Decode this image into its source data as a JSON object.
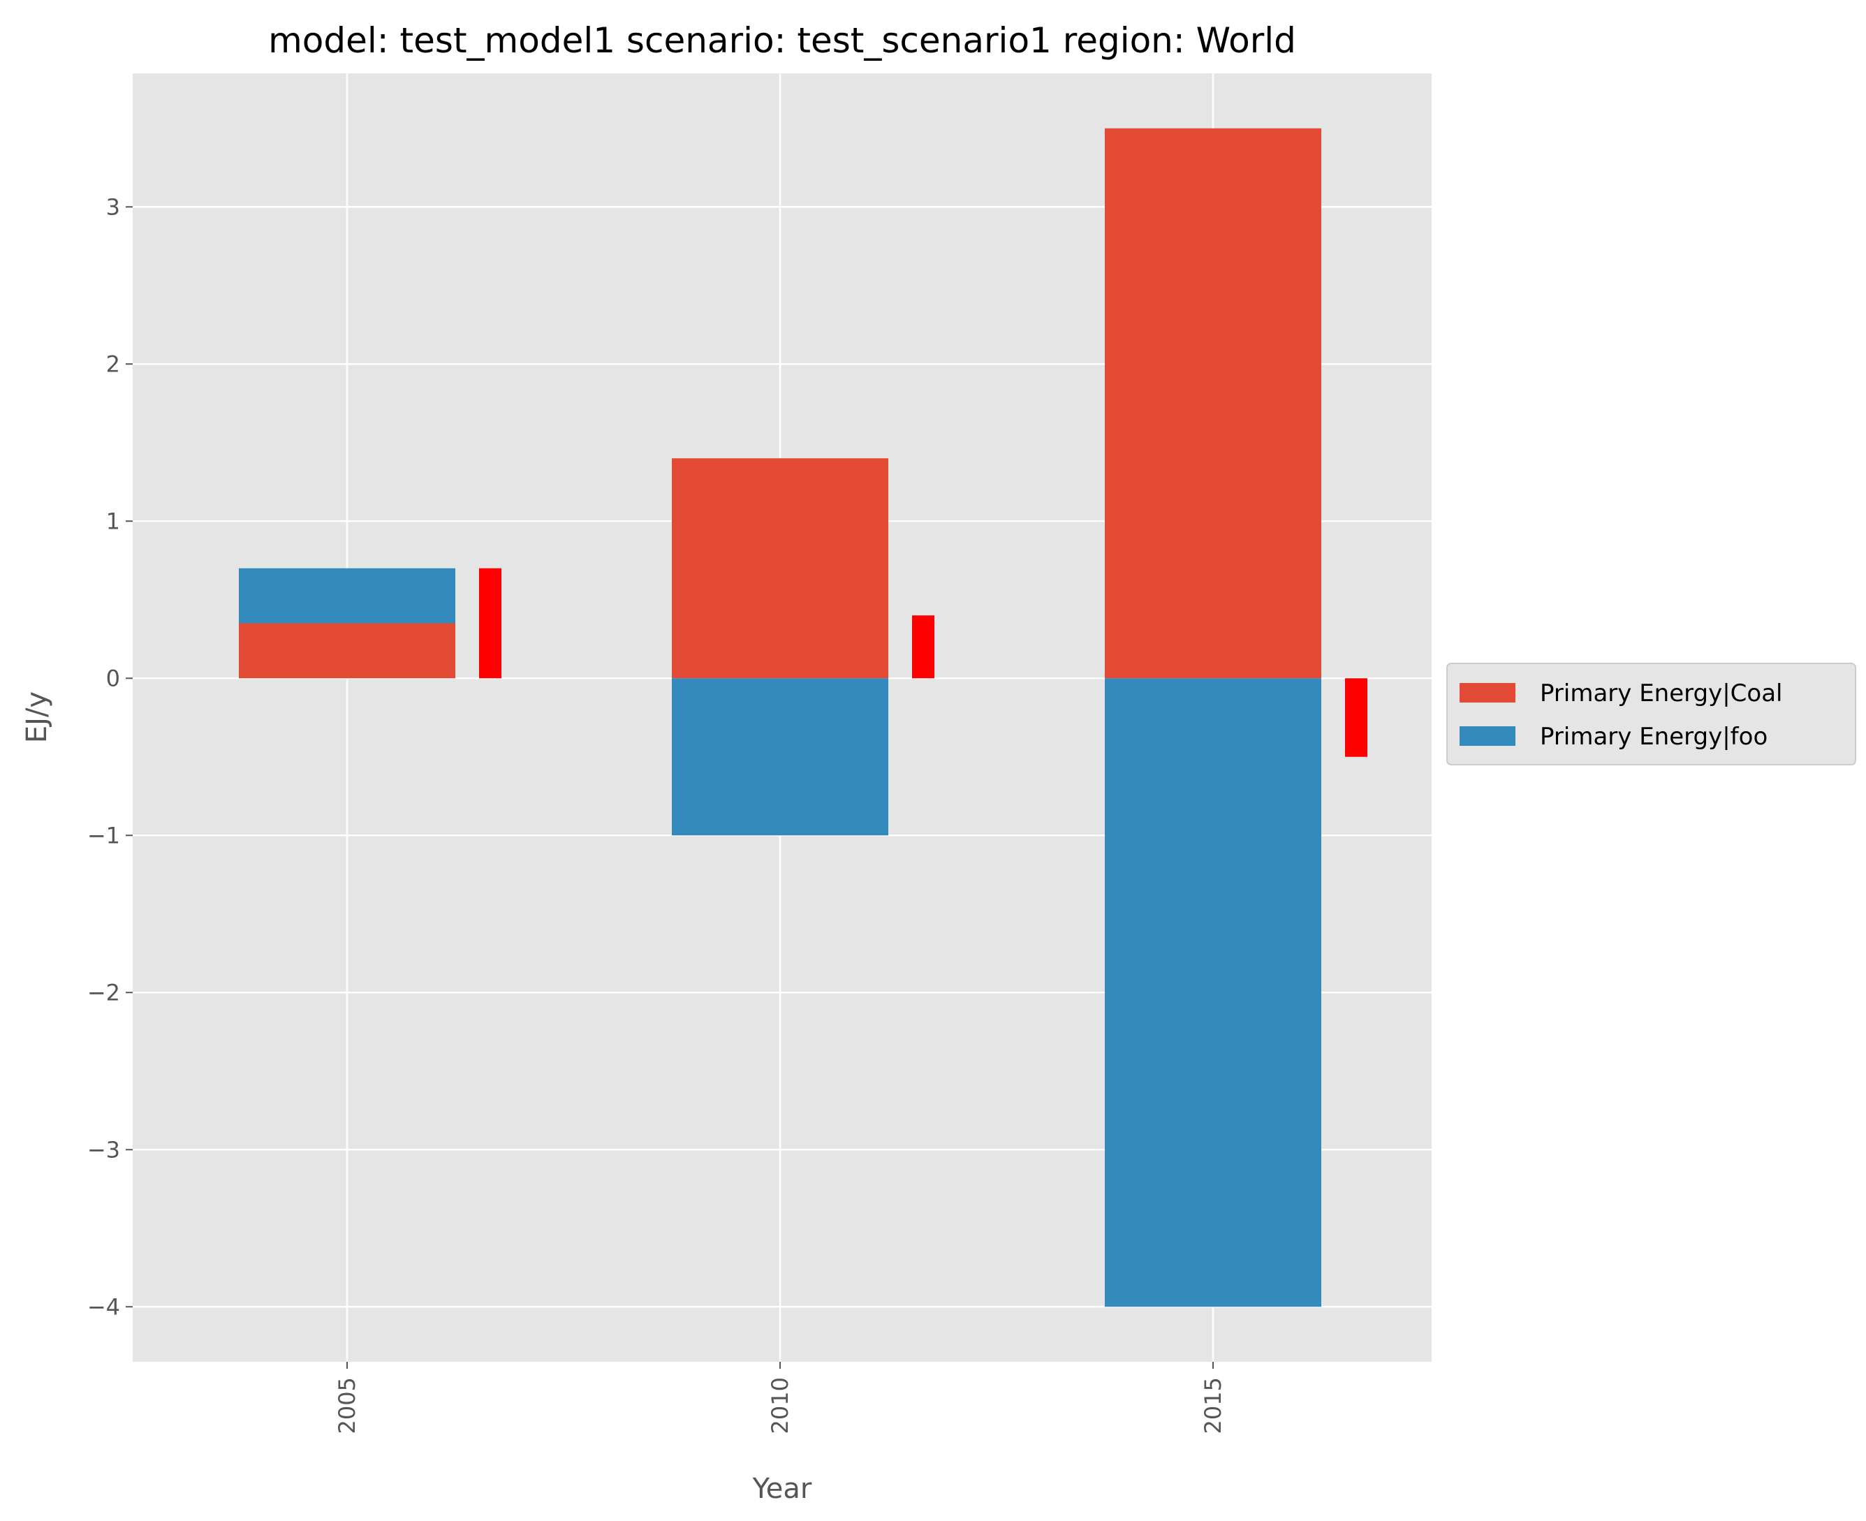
{
  "chart_data": {
    "type": "bar",
    "stacked": true,
    "title": "model: test_model1 scenario: test_scenario1 region: World",
    "xlabel": "Year",
    "ylabel": "EJ/y",
    "categories": [
      "2005",
      "2010",
      "2015"
    ],
    "series": [
      {
        "name": "Primary Energy|Coal",
        "color": "#E24A33",
        "values": [
          0.35,
          1.4,
          3.5
        ]
      },
      {
        "name": "Primary Energy|foo",
        "color": "#348ABD",
        "values": [
          0.35,
          -1.0,
          -4.0
        ]
      }
    ],
    "totals": {
      "color": "#FF0000",
      "values": [
        0.7,
        0.4,
        -0.5
      ]
    },
    "ylim": [
      -4.35,
      3.85
    ],
    "yticks": [
      3,
      2,
      1,
      0,
      -1,
      -2,
      -3,
      -4
    ],
    "ytick_labels": [
      "3",
      "2",
      "1",
      "0",
      "−1",
      "−2",
      "−3",
      "−4"
    ],
    "xtick_labels": [
      "2005",
      "2010",
      "2015"
    ],
    "grid": true,
    "legend": "right-outside",
    "background": "#E5E5E5"
  }
}
